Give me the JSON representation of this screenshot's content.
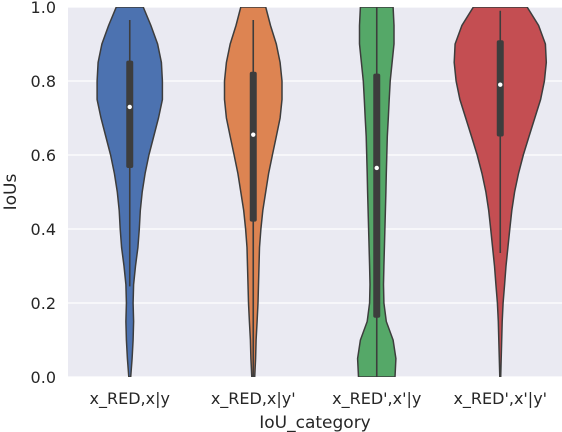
{
  "chart_data": {
    "type": "violin",
    "xlabel": "IoU_category",
    "ylabel": "IoUs",
    "ylim": [
      0,
      1
    ],
    "yticks": [
      0.0,
      0.2,
      0.4,
      0.6,
      0.8,
      1.0
    ],
    "ytick_labels": [
      "0.0",
      "0.2",
      "0.4",
      "0.6",
      "0.8",
      "1.0"
    ],
    "grid": true,
    "background": "#EAEAF2",
    "categories": [
      "x_RED,x|y",
      "x_RED,x|y'",
      "x_RED',x'|y",
      "x_RED',x'|y'"
    ],
    "colors": [
      "#4C72B0",
      "#DD8452",
      "#55A868",
      "#C44E52"
    ],
    "series": [
      {
        "median": 0.73,
        "q1": 0.565,
        "q3": 0.855,
        "whisker_low": 0.245,
        "whisker_high": 0.965,
        "density": [
          [
            0.0,
            0.01
          ],
          [
            0.05,
            0.025
          ],
          [
            0.1,
            0.035
          ],
          [
            0.15,
            0.04
          ],
          [
            0.2,
            0.035
          ],
          [
            0.25,
            0.04
          ],
          [
            0.3,
            0.06
          ],
          [
            0.35,
            0.085
          ],
          [
            0.4,
            0.1
          ],
          [
            0.45,
            0.11
          ],
          [
            0.5,
            0.13
          ],
          [
            0.55,
            0.16
          ],
          [
            0.6,
            0.2
          ],
          [
            0.65,
            0.25
          ],
          [
            0.7,
            0.3
          ],
          [
            0.75,
            0.34
          ],
          [
            0.8,
            0.34
          ],
          [
            0.85,
            0.33
          ],
          [
            0.9,
            0.29
          ],
          [
            0.95,
            0.22
          ],
          [
            1.0,
            0.14
          ]
        ]
      },
      {
        "median": 0.655,
        "q1": 0.42,
        "q3": 0.825,
        "whisker_low": 0.0,
        "whisker_high": 0.965,
        "density": [
          [
            0.0,
            0.015
          ],
          [
            0.05,
            0.025
          ],
          [
            0.1,
            0.03
          ],
          [
            0.15,
            0.04
          ],
          [
            0.2,
            0.05
          ],
          [
            0.25,
            0.055
          ],
          [
            0.3,
            0.06
          ],
          [
            0.35,
            0.065
          ],
          [
            0.4,
            0.08
          ],
          [
            0.45,
            0.1
          ],
          [
            0.5,
            0.13
          ],
          [
            0.55,
            0.16
          ],
          [
            0.6,
            0.2
          ],
          [
            0.65,
            0.24
          ],
          [
            0.7,
            0.28
          ],
          [
            0.75,
            0.3
          ],
          [
            0.8,
            0.3
          ],
          [
            0.85,
            0.28
          ],
          [
            0.9,
            0.24
          ],
          [
            0.95,
            0.18
          ],
          [
            1.0,
            0.13
          ]
        ]
      },
      {
        "median": 0.565,
        "q1": 0.16,
        "q3": 0.82,
        "whisker_low": 0.0,
        "whisker_high": 1.0,
        "density": [
          [
            0.0,
            0.19
          ],
          [
            0.05,
            0.2
          ],
          [
            0.1,
            0.17
          ],
          [
            0.15,
            0.1
          ],
          [
            0.2,
            0.075
          ],
          [
            0.25,
            0.07
          ],
          [
            0.3,
            0.075
          ],
          [
            0.35,
            0.08
          ],
          [
            0.4,
            0.085
          ],
          [
            0.45,
            0.09
          ],
          [
            0.5,
            0.095
          ],
          [
            0.55,
            0.1
          ],
          [
            0.6,
            0.105
          ],
          [
            0.65,
            0.11
          ],
          [
            0.7,
            0.12
          ],
          [
            0.75,
            0.13
          ],
          [
            0.8,
            0.14
          ],
          [
            0.85,
            0.16
          ],
          [
            0.9,
            0.18
          ],
          [
            0.95,
            0.18
          ],
          [
            1.0,
            0.17
          ]
        ]
      },
      {
        "median": 0.79,
        "q1": 0.65,
        "q3": 0.91,
        "whisker_low": 0.335,
        "whisker_high": 0.99,
        "density": [
          [
            0.0,
            0.005
          ],
          [
            0.05,
            0.01
          ],
          [
            0.1,
            0.015
          ],
          [
            0.15,
            0.02
          ],
          [
            0.2,
            0.03
          ],
          [
            0.25,
            0.045
          ],
          [
            0.3,
            0.06
          ],
          [
            0.35,
            0.08
          ],
          [
            0.4,
            0.1
          ],
          [
            0.45,
            0.12
          ],
          [
            0.5,
            0.15
          ],
          [
            0.55,
            0.19
          ],
          [
            0.6,
            0.24
          ],
          [
            0.65,
            0.3
          ],
          [
            0.7,
            0.36
          ],
          [
            0.75,
            0.42
          ],
          [
            0.8,
            0.46
          ],
          [
            0.85,
            0.48
          ],
          [
            0.9,
            0.47
          ],
          [
            0.95,
            0.4
          ],
          [
            1.0,
            0.28
          ]
        ]
      }
    ]
  }
}
